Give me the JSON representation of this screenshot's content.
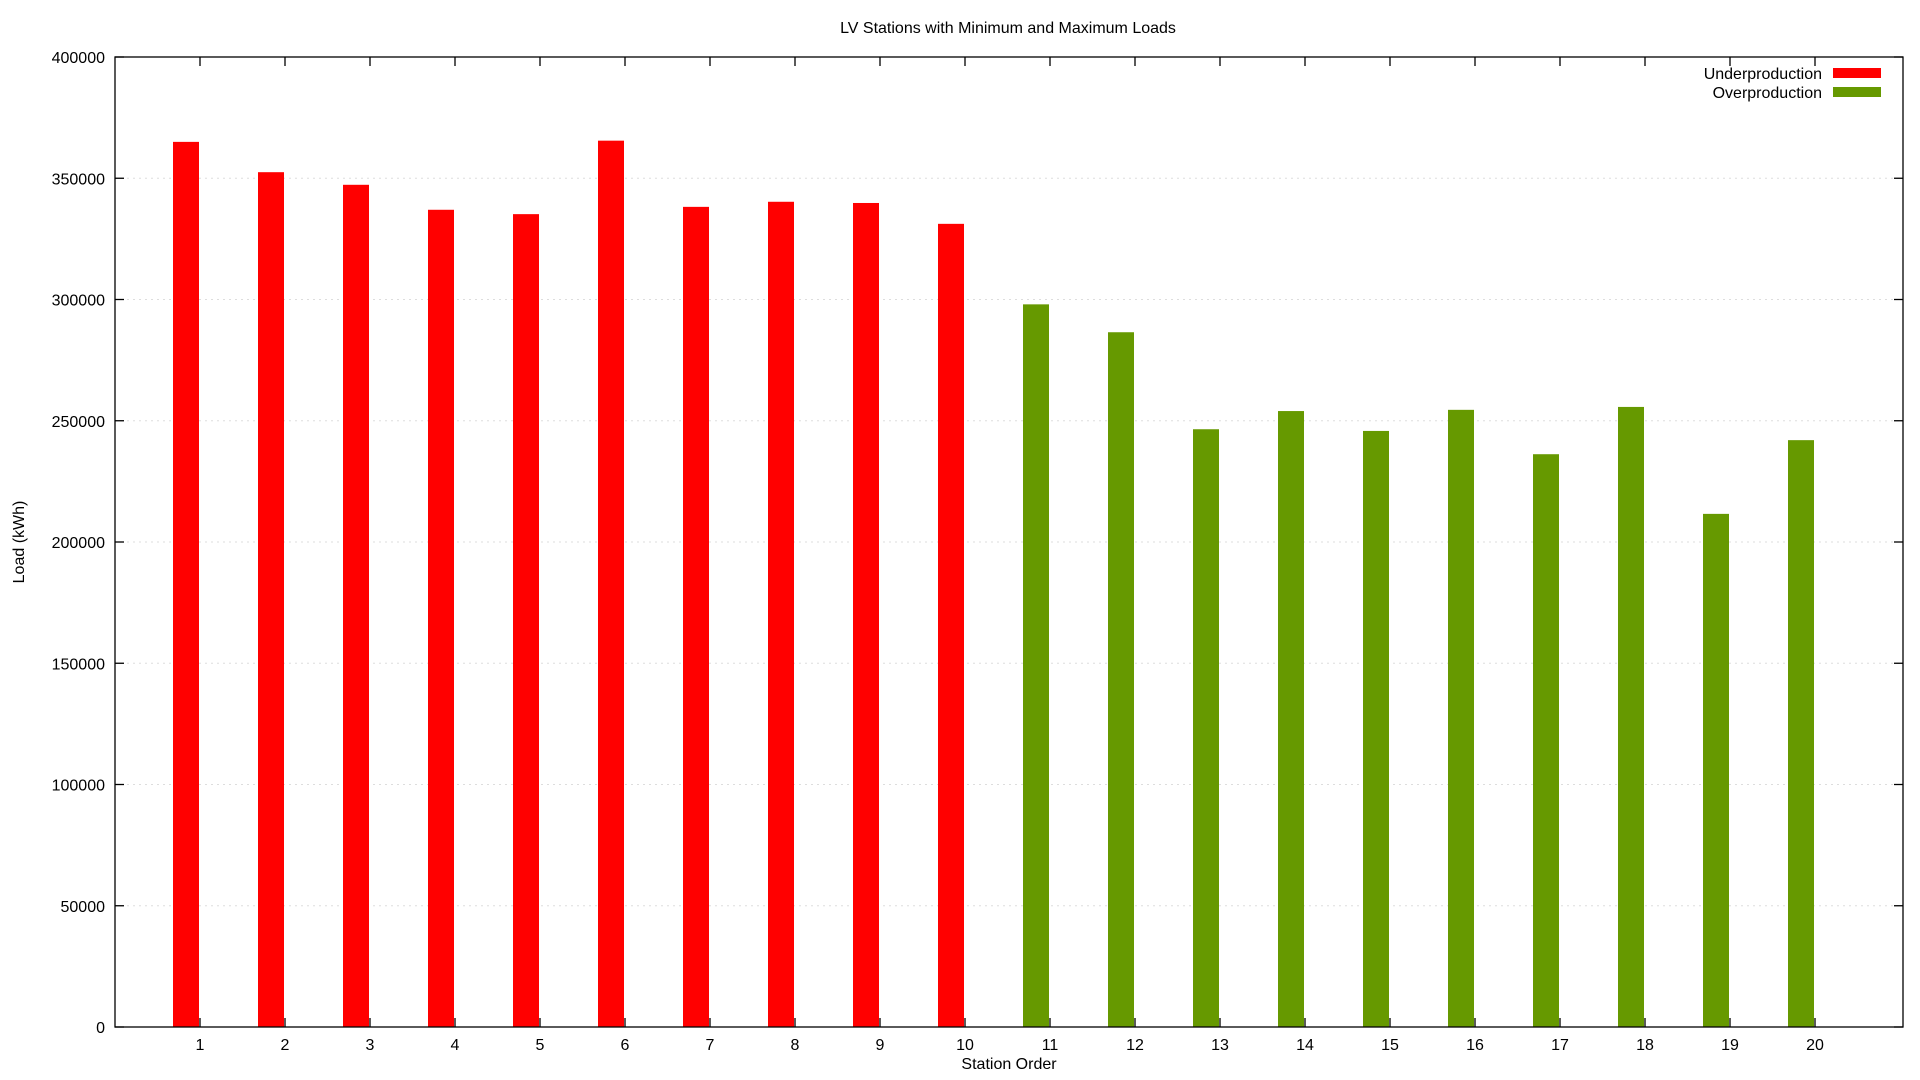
{
  "colors": {
    "underproduction": "#ff0000",
    "overproduction": "#669900"
  },
  "chart_data": {
    "type": "bar",
    "title": "LV Stations with Minimum and Maximum Loads",
    "xlabel": "Station Order",
    "ylabel": "Load (kWh)",
    "ylim": [
      0,
      400000
    ],
    "y_ticks": [
      0,
      50000,
      100000,
      150000,
      200000,
      250000,
      300000,
      350000,
      400000
    ],
    "y_tick_labels": [
      "0",
      "50000",
      "100000",
      "150000",
      "200000",
      "250000",
      "300000",
      "350000",
      "400000"
    ],
    "categories": [
      "1",
      "2",
      "3",
      "4",
      "5",
      "6",
      "7",
      "8",
      "9",
      "10",
      "11",
      "12",
      "13",
      "14",
      "15",
      "16",
      "17",
      "18",
      "19",
      "20"
    ],
    "grid": "horizontal-dotted",
    "legend_position": "top-right",
    "series": [
      {
        "name": "Underproduction",
        "color": "#ff0000",
        "values": [
          365000,
          352500,
          347300,
          337000,
          335200,
          365500,
          338200,
          340300,
          339800,
          331200,
          null,
          null,
          null,
          null,
          null,
          null,
          null,
          null,
          null,
          null
        ]
      },
      {
        "name": "Overproduction",
        "color": "#669900",
        "values": [
          null,
          null,
          null,
          null,
          null,
          null,
          null,
          null,
          null,
          null,
          298000,
          286500,
          246500,
          254000,
          245800,
          254500,
          236200,
          255700,
          211600,
          242000
        ]
      }
    ]
  }
}
